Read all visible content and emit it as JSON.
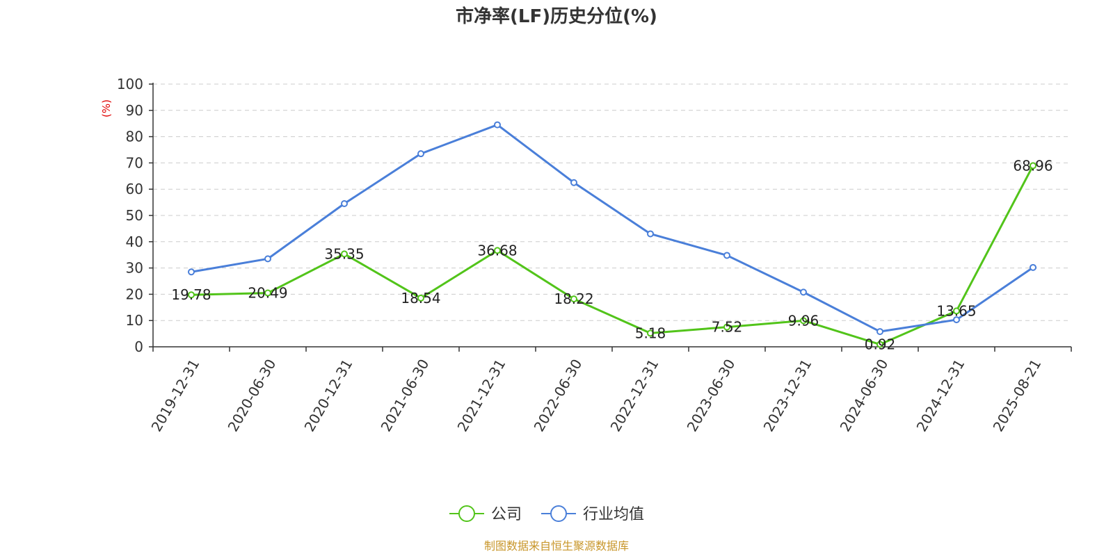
{
  "chart_data": {
    "type": "line",
    "title": "市净率(LF)历史分位(%)",
    "ylabel": "(%)",
    "ylim": [
      0,
      100
    ],
    "yticks": [
      0,
      10,
      20,
      30,
      40,
      50,
      60,
      70,
      80,
      90,
      100
    ],
    "grid": true,
    "legend_position": "bottom-center",
    "categories": [
      "2019-12-31",
      "2020-06-30",
      "2020-12-31",
      "2021-06-30",
      "2021-12-31",
      "2022-06-30",
      "2022-12-31",
      "2023-06-30",
      "2023-12-31",
      "2024-06-30",
      "2024-12-31",
      "2025-08-21"
    ],
    "series": [
      {
        "name": "公司",
        "color": "#52c41a",
        "values": [
          19.78,
          20.49,
          35.35,
          18.54,
          36.68,
          18.22,
          5.18,
          7.52,
          9.96,
          0.92,
          13.65,
          68.96
        ],
        "data_labels": [
          "19.78",
          "20.49",
          "35.35",
          "18.54",
          "36.68",
          "18.22",
          "5.18",
          "7.52",
          "9.96",
          "0.92",
          "13.65",
          "68.96"
        ]
      },
      {
        "name": "行业均值",
        "color": "#4a7fd9",
        "values": [
          28.5,
          33.5,
          54.5,
          73.5,
          84.5,
          62.5,
          43.0,
          34.8,
          20.8,
          5.8,
          10.3,
          30.2
        ]
      }
    ]
  },
  "source": "制图数据来自恒生聚源数据库"
}
